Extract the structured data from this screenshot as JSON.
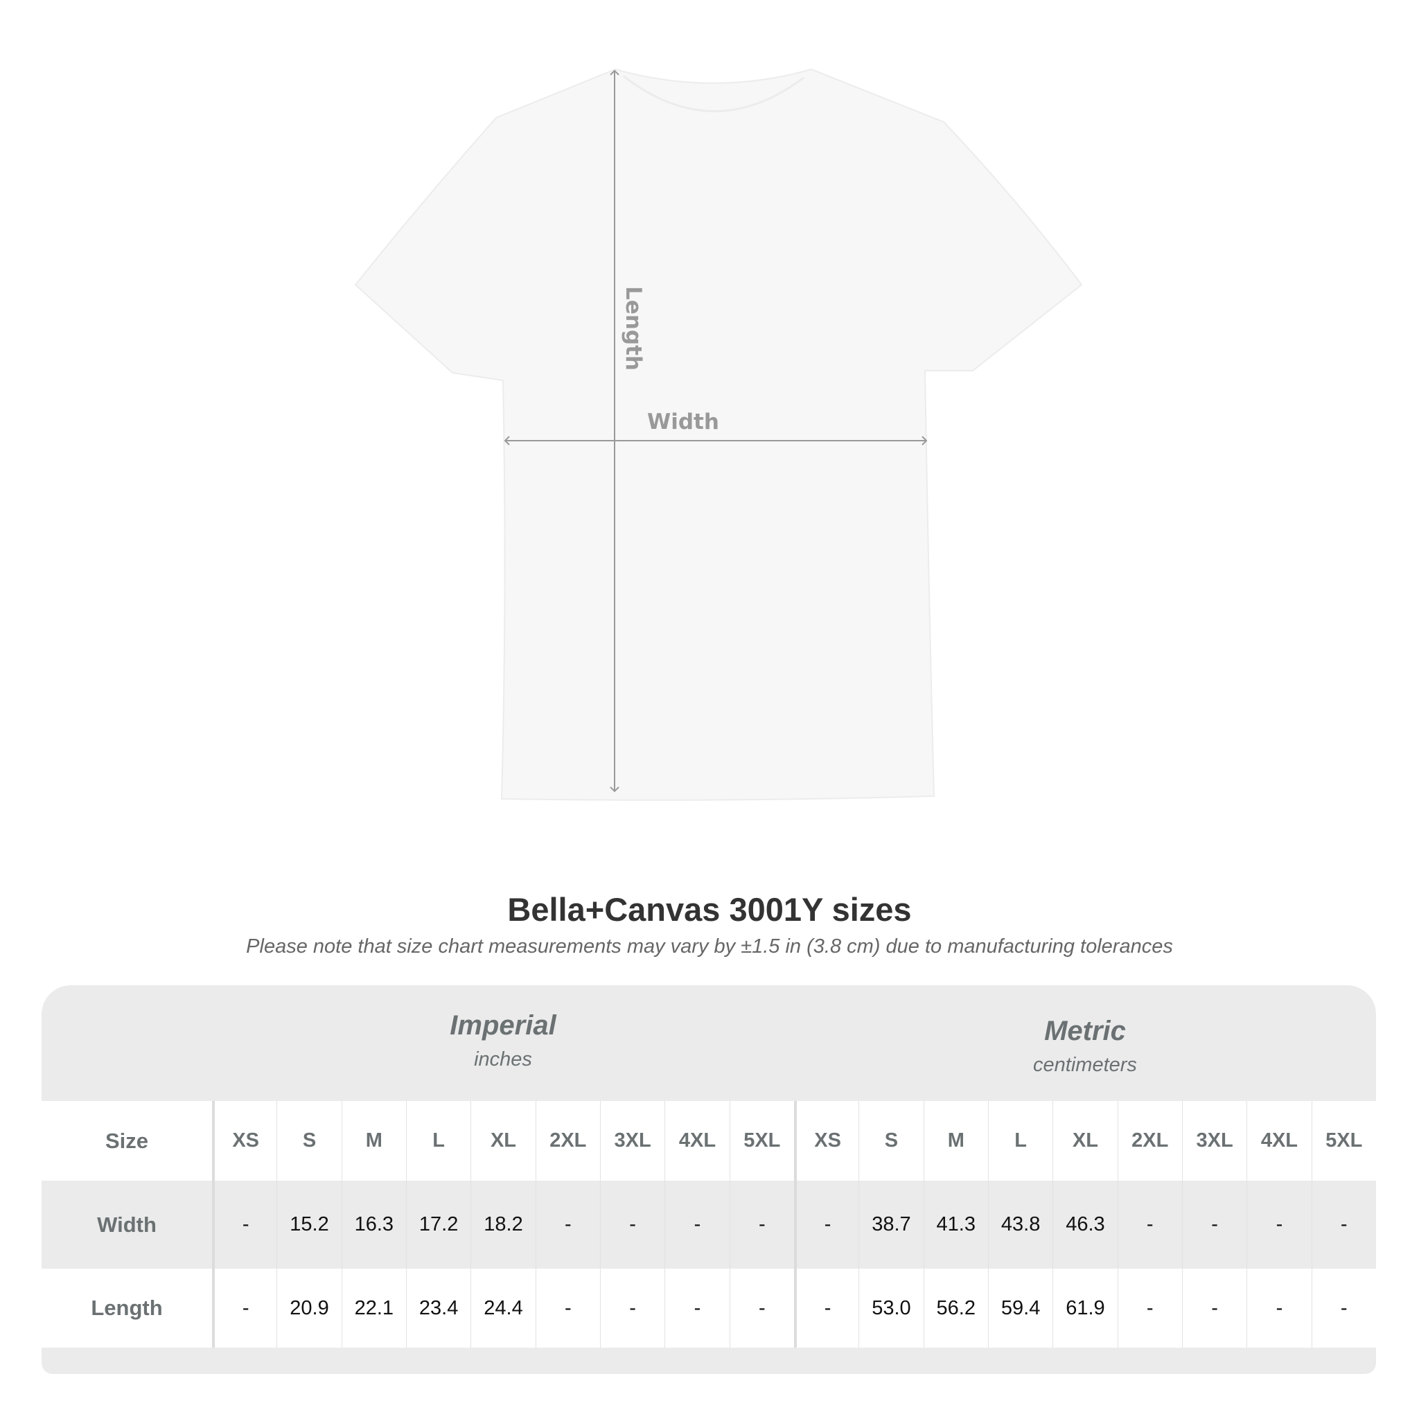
{
  "diagram": {
    "width_label": "Width",
    "length_label": "Length",
    "arrow_color": "#999999",
    "shirt_color": "#f7f7f7"
  },
  "title": "Bella+Canvas 3001Y sizes",
  "subtitle": "Please note that size chart measurements may vary by ±1.5 in (3.8 cm) due to manufacturing tolerances",
  "table": {
    "groups": [
      {
        "name": "Imperial",
        "unit": "inches"
      },
      {
        "name": "Metric",
        "unit": "centimeters"
      }
    ],
    "size_label": "Size",
    "sizes": [
      "XS",
      "S",
      "M",
      "L",
      "XL",
      "2XL",
      "3XL",
      "4XL",
      "5XL"
    ],
    "rows": [
      {
        "label": "Width",
        "imperial": [
          "-",
          "15.2",
          "16.3",
          "17.2",
          "18.2",
          "-",
          "-",
          "-",
          "-"
        ],
        "metric": [
          "-",
          "38.7",
          "41.3",
          "43.8",
          "46.3",
          "-",
          "-",
          "-",
          "-"
        ]
      },
      {
        "label": "Length",
        "imperial": [
          "-",
          "20.9",
          "22.1",
          "23.4",
          "24.4",
          "-",
          "-",
          "-",
          "-"
        ],
        "metric": [
          "-",
          "53.0",
          "56.2",
          "59.4",
          "61.9",
          "-",
          "-",
          "-",
          "-"
        ]
      }
    ],
    "colors": {
      "header_bg": "#ebebeb",
      "label_text": "#6b7173",
      "value_text": "#111111"
    }
  }
}
